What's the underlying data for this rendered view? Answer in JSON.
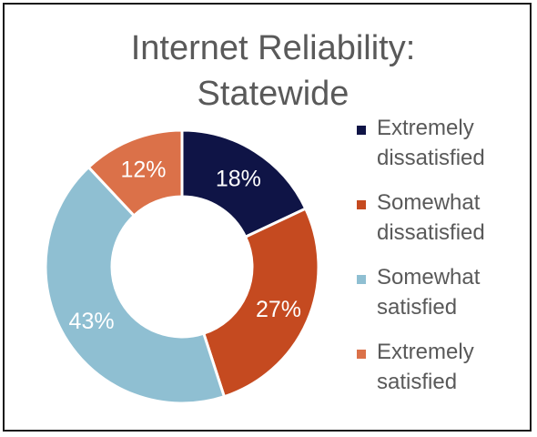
{
  "chart_data": {
    "type": "pie",
    "title": "Internet Reliability: Statewide",
    "title_lines": [
      "Internet Reliability:",
      "Statewide"
    ],
    "donut": true,
    "categories": [
      "Extremely dissatisfied",
      "Somewhat dissatisfied",
      "Somewhat satisfied",
      "Extremely satisfied"
    ],
    "legend_lines": [
      [
        "Extremely",
        "dissatisfied"
      ],
      [
        "Somewhat",
        "dissatisfied"
      ],
      [
        "Somewhat",
        "satisfied"
      ],
      [
        "Extremely",
        "satisfied"
      ]
    ],
    "values": [
      18,
      27,
      43,
      12
    ],
    "data_labels": [
      "18%",
      "27%",
      "43%",
      "12%"
    ],
    "colors": [
      "#0f1446",
      "#c54a20",
      "#8fbfd2",
      "#db7149"
    ],
    "legend_position": "right"
  }
}
